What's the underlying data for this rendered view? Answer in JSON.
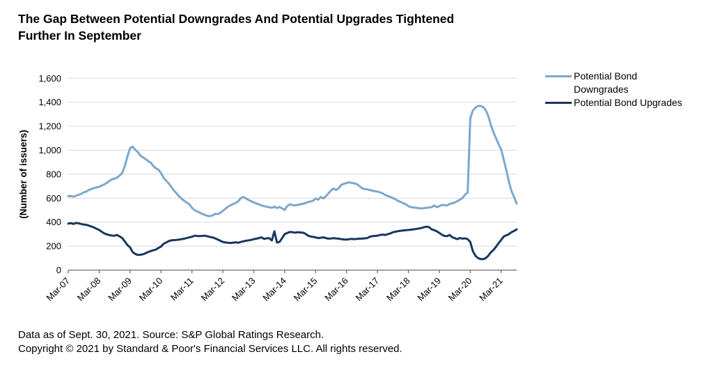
{
  "title": {
    "line1": "The Gap Between Potential Downgrades And Potential Upgrades Tightened",
    "line2": "Further In September"
  },
  "legend": {
    "items": [
      {
        "line1": "Potential Bond",
        "line2": "Downgrades",
        "color": "#7CA7CB"
      },
      {
        "line1": "Potential Bond Upgrades",
        "line2": "",
        "color": "#17375E"
      }
    ]
  },
  "footer": {
    "line1": "Data as of Sept. 30, 2021. Source: S&P Global Ratings Research.",
    "line2": "Copyright © 2021 by Standard & Poor's Financial Services LLC. All rights reserved."
  },
  "chart_data": {
    "type": "line",
    "title": "The Gap Between Potential Downgrades And Potential Upgrades Tightened Further In September",
    "xlabel": "",
    "ylabel": "(Number of issuers)",
    "ylim": [
      0,
      1600
    ],
    "ytick_step": 200,
    "grid": "horizontal-only",
    "legend_position": "right",
    "x_frequency": "monthly",
    "x_start": "Mar-07",
    "x_end": "Sep-21",
    "x_tick_labels": [
      "Mar-07",
      "Mar-08",
      "Mar-09",
      "Mar-10",
      "Mar-11",
      "Mar-12",
      "Mar-13",
      "Mar-14",
      "Mar-15",
      "Mar-16",
      "Mar-17",
      "Mar-18",
      "Mar-19",
      "Mar-20",
      "Mar-21"
    ],
    "colors": {
      "gridline": "#D9D9D9",
      "axis": "#6E6E6E",
      "tick_text": "#000000"
    },
    "series": [
      {
        "name": "Potential Bond Downgrades",
        "color": "#7CA7CB",
        "values": [
          616,
          618,
          612,
          620,
          628,
          636,
          648,
          655,
          668,
          676,
          684,
          690,
          695,
          705,
          714,
          728,
          745,
          757,
          763,
          772,
          790,
          812,
          870,
          950,
          1015,
          1030,
          1003,
          985,
          955,
          940,
          926,
          910,
          897,
          868,
          850,
          838,
          810,
          771,
          745,
          723,
          695,
          665,
          640,
          616,
          595,
          578,
          562,
          549,
          520,
          500,
          490,
          480,
          468,
          461,
          452,
          450,
          455,
          470,
          467,
          478,
          494,
          512,
          529,
          541,
          552,
          560,
          575,
          601,
          610,
          597,
          585,
          574,
          564,
          555,
          549,
          539,
          534,
          529,
          524,
          520,
          529,
          518,
          526,
          515,
          502,
          535,
          549,
          543,
          539,
          544,
          549,
          553,
          558,
          568,
          572,
          578,
          597,
          587,
          610,
          597,
          616,
          640,
          665,
          680,
          668,
          684,
          713,
          720,
          726,
          732,
          728,
          723,
          717,
          700,
          684,
          676,
          674,
          668,
          662,
          658,
          655,
          648,
          641,
          626,
          618,
          610,
          600,
          591,
          578,
          568,
          558,
          549,
          533,
          525,
          522,
          520,
          517,
          514,
          517,
          520,
          522,
          525,
          539,
          525,
          533,
          544,
          541,
          539,
          552,
          558,
          564,
          575,
          588,
          601,
          630,
          648,
          1265,
          1330,
          1355,
          1369,
          1369,
          1360,
          1335,
          1285,
          1210,
          1150,
          1100,
          1050,
          1005,
          920,
          833,
          736,
          659,
          610,
          555
        ]
      },
      {
        "name": "Potential Bond Upgrades",
        "color": "#17375E",
        "values": [
          388,
          392,
          385,
          393,
          390,
          385,
          380,
          378,
          371,
          364,
          355,
          345,
          335,
          320,
          306,
          298,
          292,
          288,
          287,
          293,
          280,
          267,
          238,
          209,
          190,
          150,
          135,
          127,
          128,
          132,
          140,
          151,
          158,
          165,
          171,
          185,
          196,
          219,
          230,
          242,
          248,
          250,
          252,
          254,
          258,
          262,
          268,
          273,
          278,
          287,
          285,
          283,
          285,
          287,
          282,
          277,
          272,
          265,
          255,
          245,
          235,
          230,
          228,
          226,
          229,
          232,
          228,
          235,
          240,
          245,
          248,
          252,
          258,
          262,
          267,
          273,
          260,
          265,
          267,
          247,
          324,
          230,
          235,
          267,
          300,
          310,
          318,
          316,
          312,
          316,
          314,
          312,
          304,
          287,
          281,
          277,
          273,
          267,
          270,
          273,
          267,
          262,
          264,
          267,
          264,
          262,
          258,
          256,
          254,
          258,
          260,
          258,
          260,
          262,
          262,
          265,
          267,
          278,
          283,
          285,
          287,
          293,
          296,
          293,
          300,
          306,
          316,
          320,
          325,
          328,
          331,
          333,
          335,
          337,
          340,
          343,
          347,
          351,
          357,
          362,
          358,
          340,
          333,
          324,
          310,
          295,
          285,
          283,
          293,
          274,
          266,
          258,
          268,
          262,
          265,
          258,
          235,
          158,
          120,
          100,
          92,
          91,
          100,
          120,
          149,
          168,
          195,
          225,
          252,
          280,
          290,
          300,
          316,
          326,
          340
        ]
      }
    ]
  }
}
